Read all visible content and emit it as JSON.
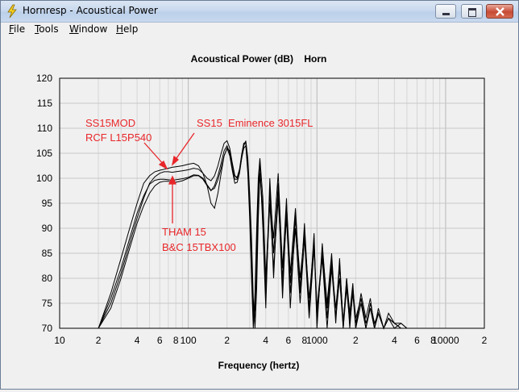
{
  "window": {
    "title": "Hornresp - Acoustical Power",
    "icon": "lightning-icon",
    "controls": [
      "minimize-icon",
      "maximize-icon",
      "close-icon"
    ]
  },
  "menu": {
    "items": [
      {
        "label": "File",
        "mnemonic": "F",
        "rest": "ile"
      },
      {
        "label": "Tools",
        "mnemonic": "T",
        "rest": "ools"
      },
      {
        "label": "Window",
        "mnemonic": "W",
        "rest": "indow"
      },
      {
        "label": "Help",
        "mnemonic": "H",
        "rest": "elp"
      }
    ]
  },
  "chart_data": {
    "type": "line",
    "title": "Acoustical Power (dB)    Horn",
    "xlabel": "Frequency (hertz)",
    "ylabel": "",
    "x_scale": "log",
    "xlim": [
      10,
      20000
    ],
    "ylim": [
      70,
      120
    ],
    "grid": true,
    "y_ticks": [
      70,
      75,
      80,
      85,
      90,
      95,
      100,
      105,
      110,
      115,
      120
    ],
    "x_tick_labels": [
      {
        "value": 10,
        "label": "10"
      },
      {
        "value": 20,
        "label": "2"
      },
      {
        "value": 40,
        "label": "4"
      },
      {
        "value": 60,
        "label": "6"
      },
      {
        "value": 80,
        "label": "8"
      },
      {
        "value": 100,
        "label": "100"
      },
      {
        "value": 200,
        "label": "2"
      },
      {
        "value": 400,
        "label": "4"
      },
      {
        "value": 600,
        "label": "6"
      },
      {
        "value": 800,
        "label": "8"
      },
      {
        "value": 1000,
        "label": "1000"
      },
      {
        "value": 2000,
        "label": "2"
      },
      {
        "value": 4000,
        "label": "4"
      },
      {
        "value": 6000,
        "label": "6"
      },
      {
        "value": 8000,
        "label": "8"
      },
      {
        "value": 10000,
        "label": "10000"
      },
      {
        "value": 20000,
        "label": "2"
      }
    ],
    "annotation_color": "#e8262a",
    "annotations": [
      {
        "lines": [
          "SS15MOD",
          "RCF L15P540"
        ]
      },
      {
        "lines": [
          "SS15  Eminence 3015FL"
        ]
      },
      {
        "lines": [
          "THAM 15",
          "B&C 15TBX100"
        ]
      }
    ],
    "series": [
      {
        "x": [
          20,
          25,
          30,
          35,
          40,
          45,
          50,
          55,
          60,
          65,
          70,
          75,
          80,
          90,
          100,
          110,
          120,
          130,
          140,
          150,
          160,
          170,
          180,
          190,
          200,
          210,
          220,
          230,
          240,
          250,
          260,
          270,
          280,
          290,
          300,
          310,
          320,
          330,
          340,
          350,
          360,
          380,
          400,
          430,
          460,
          500,
          540,
          580,
          620,
          680,
          740,
          800,
          870,
          950,
          1000,
          1100,
          1200,
          1300,
          1400,
          1500,
          1600,
          1700,
          1800,
          1900,
          2000,
          2200,
          2400,
          2600,
          2800,
          3000,
          3300,
          3600,
          4000,
          4500,
          5000
        ],
        "y": [
          70,
          77,
          84,
          90,
          95,
          99,
          100.5,
          101.3,
          101.6,
          101.8,
          102,
          102.2,
          102.3,
          102.5,
          102.8,
          103,
          102.5,
          101,
          98.5,
          95,
          94,
          97,
          101,
          104.5,
          106,
          104.5,
          101.5,
          99,
          99.2,
          101,
          104,
          106.5,
          107.5,
          104,
          97,
          88,
          76,
          70,
          78,
          92,
          101,
          94,
          78,
          95,
          82,
          96,
          80,
          92,
          77,
          90,
          75,
          88,
          72,
          86,
          73,
          84,
          70,
          82,
          72,
          80,
          70,
          78,
          71,
          77,
          70,
          75,
          70,
          74,
          70,
          73,
          70,
          72,
          71,
          70,
          70
        ]
      },
      {
        "x": [
          20,
          25,
          30,
          35,
          40,
          45,
          50,
          55,
          60,
          65,
          70,
          75,
          80,
          90,
          100,
          110,
          120,
          130,
          140,
          150,
          160,
          170,
          180,
          190,
          200,
          210,
          220,
          230,
          240,
          250,
          260,
          270,
          280,
          290,
          300,
          310,
          320,
          330,
          340,
          350,
          360,
          380,
          400,
          430,
          460,
          500,
          540,
          580,
          620,
          680,
          740,
          800,
          870,
          950,
          1000,
          1100,
          1200,
          1300,
          1400,
          1500,
          1600,
          1700,
          1800,
          1900,
          2000,
          2200,
          2400,
          2600,
          2800,
          3000,
          3300,
          3600,
          4000,
          4500,
          5000
        ],
        "y": [
          70,
          75,
          81,
          87,
          92,
          96,
          99,
          100.3,
          101,
          101.3,
          101.3,
          101.2,
          101.3,
          101.5,
          101.7,
          102,
          101.8,
          101,
          100,
          99.5,
          100.5,
          102.5,
          105,
          107,
          107.5,
          106,
          103,
          100.5,
          100,
          101.5,
          104.5,
          107,
          107,
          102,
          94,
          84,
          72,
          74,
          86,
          98,
          103,
          90,
          74,
          100,
          85,
          98,
          76,
          94,
          79,
          93,
          77,
          91,
          74,
          89,
          71,
          86,
          75,
          85,
          72,
          84,
          70,
          80,
          73,
          79,
          70,
          77,
          72,
          76,
          70,
          74,
          70,
          73,
          71,
          71,
          70
        ]
      },
      {
        "x": [
          20,
          25,
          30,
          35,
          40,
          45,
          50,
          55,
          60,
          65,
          70,
          75,
          80,
          90,
          100,
          110,
          120,
          130,
          140,
          150,
          160,
          170,
          180,
          190,
          200,
          210,
          220,
          230,
          240,
          250,
          260,
          270,
          280,
          290,
          300,
          310,
          320,
          330,
          340,
          350,
          360,
          380,
          400,
          430,
          460,
          500,
          540,
          580,
          620,
          680,
          740,
          800,
          870,
          950,
          1000,
          1100,
          1200,
          1300,
          1400,
          1500,
          1600,
          1700,
          1800,
          1900,
          2000,
          2200,
          2400,
          2600,
          2800,
          3000,
          3300,
          3600,
          4000,
          4500,
          5000
        ],
        "y": [
          70,
          74,
          80,
          86,
          91,
          94.5,
          97,
          98.5,
          99.2,
          99.4,
          99.4,
          99.2,
          99.2,
          99.5,
          100,
          100.5,
          100.5,
          99.8,
          98.5,
          97.5,
          98.5,
          100.5,
          103,
          105.5,
          106.5,
          105,
          102,
          99.8,
          99.8,
          101.5,
          104,
          106,
          106.5,
          101,
          92,
          80,
          70,
          77,
          90,
          100,
          104,
          96,
          80,
          97,
          88,
          101,
          82,
          96,
          74,
          92,
          80,
          89,
          76,
          87,
          74,
          85,
          72,
          83,
          74,
          82,
          71,
          80,
          70,
          78,
          72,
          76,
          70,
          75,
          71,
          73,
          70,
          72,
          70,
          71,
          70
        ]
      },
      {
        "x": [
          20,
          25,
          30,
          35,
          40,
          45,
          50,
          55,
          60,
          65,
          70,
          75,
          80,
          90,
          100,
          110,
          120,
          130,
          140,
          150,
          160,
          170,
          180,
          190,
          200,
          210,
          220,
          230,
          240,
          250,
          260,
          270,
          280,
          290,
          300,
          310,
          320,
          330,
          340,
          350,
          360,
          380,
          400,
          430,
          460,
          500,
          540,
          580,
          620,
          680,
          740,
          800,
          870,
          950,
          1000,
          1100,
          1200,
          1300,
          1400,
          1500,
          1600,
          1700,
          1800,
          1900,
          2000,
          2200,
          2400,
          2600,
          2800,
          3000,
          3300,
          3600,
          4000,
          4500,
          5000
        ],
        "y": [
          70,
          76,
          82,
          88,
          93,
          96.5,
          98.8,
          99.6,
          99.8,
          99.8,
          99.7,
          99.6,
          99.7,
          99.9,
          100.2,
          100.7,
          100.6,
          100,
          98.7,
          97.6,
          98,
          99.7,
          102,
          104.5,
          106,
          105.5,
          102.8,
          100.5,
          100.2,
          101.8,
          104.8,
          107,
          107.2,
          103,
          95,
          85,
          74,
          72,
          82,
          95,
          101,
          92,
          76,
          98,
          80,
          99,
          78,
          95,
          81,
          94,
          78,
          90,
          73,
          88,
          70,
          87,
          74,
          84,
          71,
          83,
          71,
          79,
          72,
          78,
          71,
          76,
          71,
          74,
          70,
          73,
          70,
          72,
          71,
          70,
          70
        ]
      }
    ]
  }
}
